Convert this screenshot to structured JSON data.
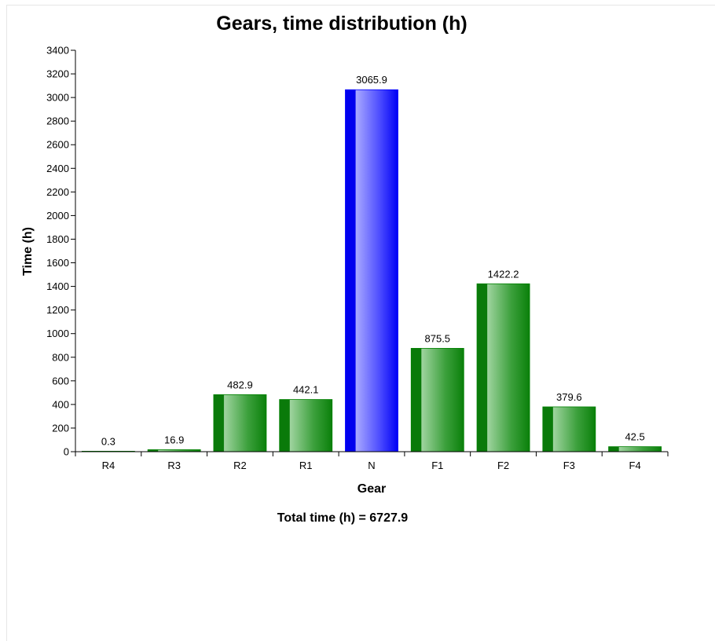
{
  "chart_data": {
    "type": "bar",
    "title": "Gears, time distribution (h)",
    "xlabel": "Gear",
    "ylabel": "Time (h)",
    "categories": [
      "R4",
      "R3",
      "R2",
      "R1",
      "N",
      "F1",
      "F2",
      "F3",
      "F4"
    ],
    "values": [
      0.3,
      16.9,
      482.9,
      442.1,
      3065.9,
      875.5,
      1422.2,
      379.6,
      42.5
    ],
    "value_labels": [
      "0.3",
      "16.9",
      "482.9",
      "442.1",
      "3065.9",
      "875.5",
      "1422.2",
      "379.6",
      "42.5"
    ],
    "ylim": [
      0,
      3400
    ],
    "yticks": [
      0,
      200,
      400,
      600,
      800,
      1000,
      1200,
      1400,
      1600,
      1800,
      2000,
      2200,
      2400,
      2600,
      2800,
      3000,
      3200,
      3400
    ],
    "grid": false,
    "colors": {
      "default_bar": "#008000",
      "highlight_bar": "#0000ff"
    },
    "highlight_category": "N",
    "footer": "Total time (h) = 6727.9"
  }
}
